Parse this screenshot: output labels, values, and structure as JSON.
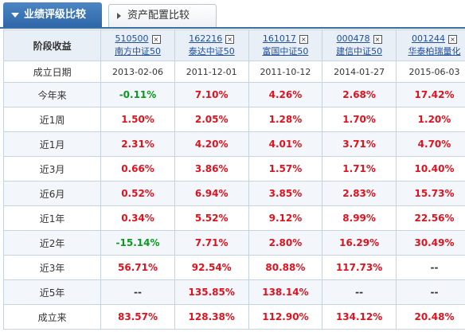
{
  "tabs": {
    "active": "业绩评级比较",
    "inactive": "资产配置比较"
  },
  "table": {
    "stage_header": "阶段收益",
    "funds": [
      {
        "code": "510500",
        "name": "南方中证50"
      },
      {
        "code": "162216",
        "name": "泰达中证50"
      },
      {
        "code": "161017",
        "name": "富国中证50"
      },
      {
        "code": "000478",
        "name": "建信中证50"
      },
      {
        "code": "001244",
        "name": "华泰柏瑞量化"
      }
    ],
    "close_glyph": "×",
    "inception_label": "成立日期",
    "inception_dates": [
      "2013-02-06",
      "2011-12-01",
      "2011-10-12",
      "2014-01-27",
      "2015-06-03"
    ],
    "rows": [
      {
        "label": "今年来",
        "values": [
          "-0.11%",
          "7.10%",
          "4.26%",
          "2.68%",
          "17.42%"
        ]
      },
      {
        "label": "近1周",
        "values": [
          "1.50%",
          "2.05%",
          "1.28%",
          "1.70%",
          "1.20%"
        ]
      },
      {
        "label": "近1月",
        "values": [
          "2.31%",
          "4.20%",
          "4.01%",
          "3.71%",
          "4.70%"
        ]
      },
      {
        "label": "近3月",
        "values": [
          "0.66%",
          "3.86%",
          "1.57%",
          "1.71%",
          "10.40%"
        ]
      },
      {
        "label": "近6月",
        "values": [
          "0.52%",
          "6.94%",
          "3.85%",
          "2.83%",
          "15.73%"
        ]
      },
      {
        "label": "近1年",
        "values": [
          "0.34%",
          "5.52%",
          "9.12%",
          "8.99%",
          "22.56%"
        ]
      },
      {
        "label": "近2年",
        "values": [
          "-15.14%",
          "7.71%",
          "2.80%",
          "16.29%",
          "30.49%"
        ]
      },
      {
        "label": "近3年",
        "values": [
          "56.71%",
          "92.54%",
          "80.88%",
          "117.73%",
          "--"
        ]
      },
      {
        "label": "近5年",
        "values": [
          "--",
          "135.85%",
          "138.14%",
          "--",
          "--"
        ]
      },
      {
        "label": "成立来",
        "values": [
          "83.57%",
          "128.38%",
          "112.90%",
          "134.12%",
          "20.48%"
        ]
      }
    ]
  },
  "colors": {
    "positive": "#e0121e",
    "negative": "#0a9a1e",
    "tab_active": "#3a6da6",
    "link": "#1f4f9e"
  }
}
